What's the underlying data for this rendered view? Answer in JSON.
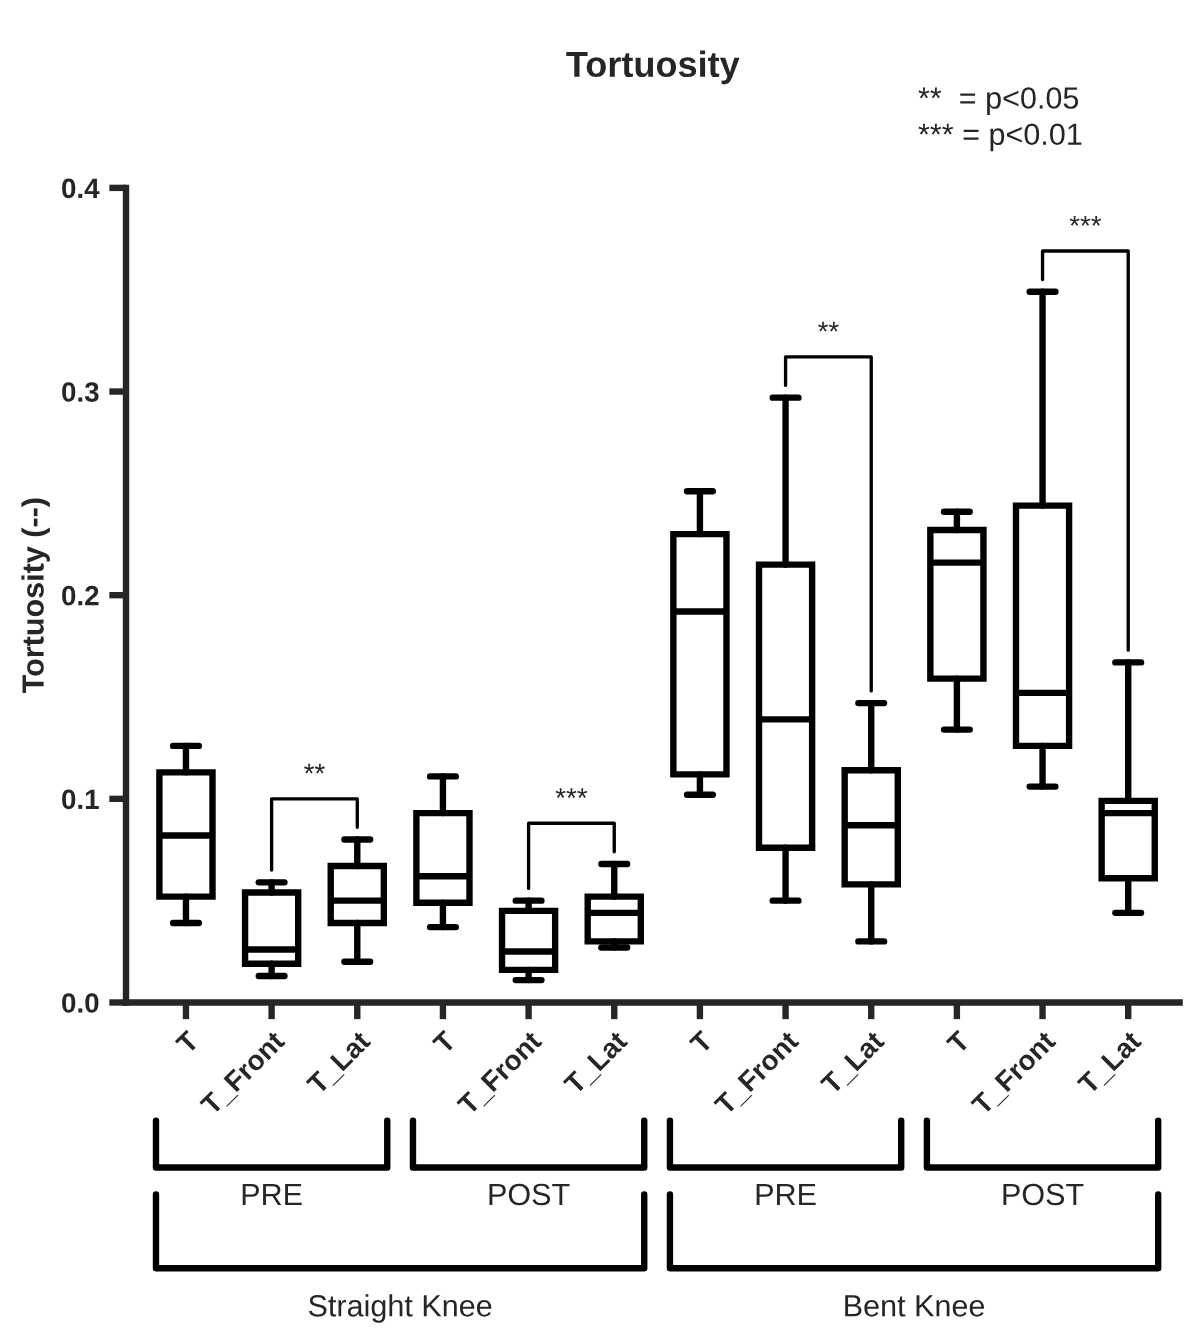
{
  "chart_data": {
    "type": "box",
    "title": "Tortuosity",
    "ylabel": "Tortuosity (--)",
    "categories": [
      "T",
      "T_Front",
      "T_Lat",
      "T",
      "T_Front",
      "T_Lat",
      "T",
      "T_Front",
      "T_Lat",
      "T",
      "T_Front",
      "T_Lat"
    ],
    "boxes": [
      {
        "low": 0.039,
        "q1": 0.052,
        "median": 0.082,
        "q3": 0.113,
        "high": 0.126
      },
      {
        "low": 0.013,
        "q1": 0.019,
        "median": 0.026,
        "q3": 0.054,
        "high": 0.059
      },
      {
        "low": 0.02,
        "q1": 0.039,
        "median": 0.05,
        "q3": 0.067,
        "high": 0.08
      },
      {
        "low": 0.037,
        "q1": 0.049,
        "median": 0.062,
        "q3": 0.093,
        "high": 0.111
      },
      {
        "low": 0.011,
        "q1": 0.016,
        "median": 0.025,
        "q3": 0.045,
        "high": 0.05
      },
      {
        "low": 0.027,
        "q1": 0.03,
        "median": 0.044,
        "q3": 0.052,
        "high": 0.068
      },
      {
        "low": 0.102,
        "q1": 0.112,
        "median": 0.192,
        "q3": 0.23,
        "high": 0.251
      },
      {
        "low": 0.05,
        "q1": 0.076,
        "median": 0.139,
        "q3": 0.215,
        "high": 0.297
      },
      {
        "low": 0.03,
        "q1": 0.058,
        "median": 0.087,
        "q3": 0.114,
        "high": 0.147
      },
      {
        "low": 0.134,
        "q1": 0.159,
        "median": 0.216,
        "q3": 0.232,
        "high": 0.241
      },
      {
        "low": 0.106,
        "q1": 0.126,
        "median": 0.152,
        "q3": 0.244,
        "high": 0.349
      },
      {
        "low": 0.044,
        "q1": 0.061,
        "median": 0.093,
        "q3": 0.099,
        "high": 0.167
      }
    ],
    "ylim": [
      0,
      0.4
    ],
    "yticks": [
      {
        "value": 0,
        "label": "0.0"
      },
      {
        "value": 0.1,
        "label": "0.1"
      },
      {
        "value": 0.2,
        "label": "0.2"
      },
      {
        "value": 0.3,
        "label": "0.3"
      },
      {
        "value": 0.4,
        "label": "0.4"
      }
    ],
    "grid": false,
    "annotations": [
      "**  = p<0.05",
      "*** = p<0.01",
      "**",
      "***",
      "**",
      "***",
      "PRE",
      "POST",
      "PRE",
      "POST",
      "Straight Knee",
      "Bent Knee"
    ]
  }
}
